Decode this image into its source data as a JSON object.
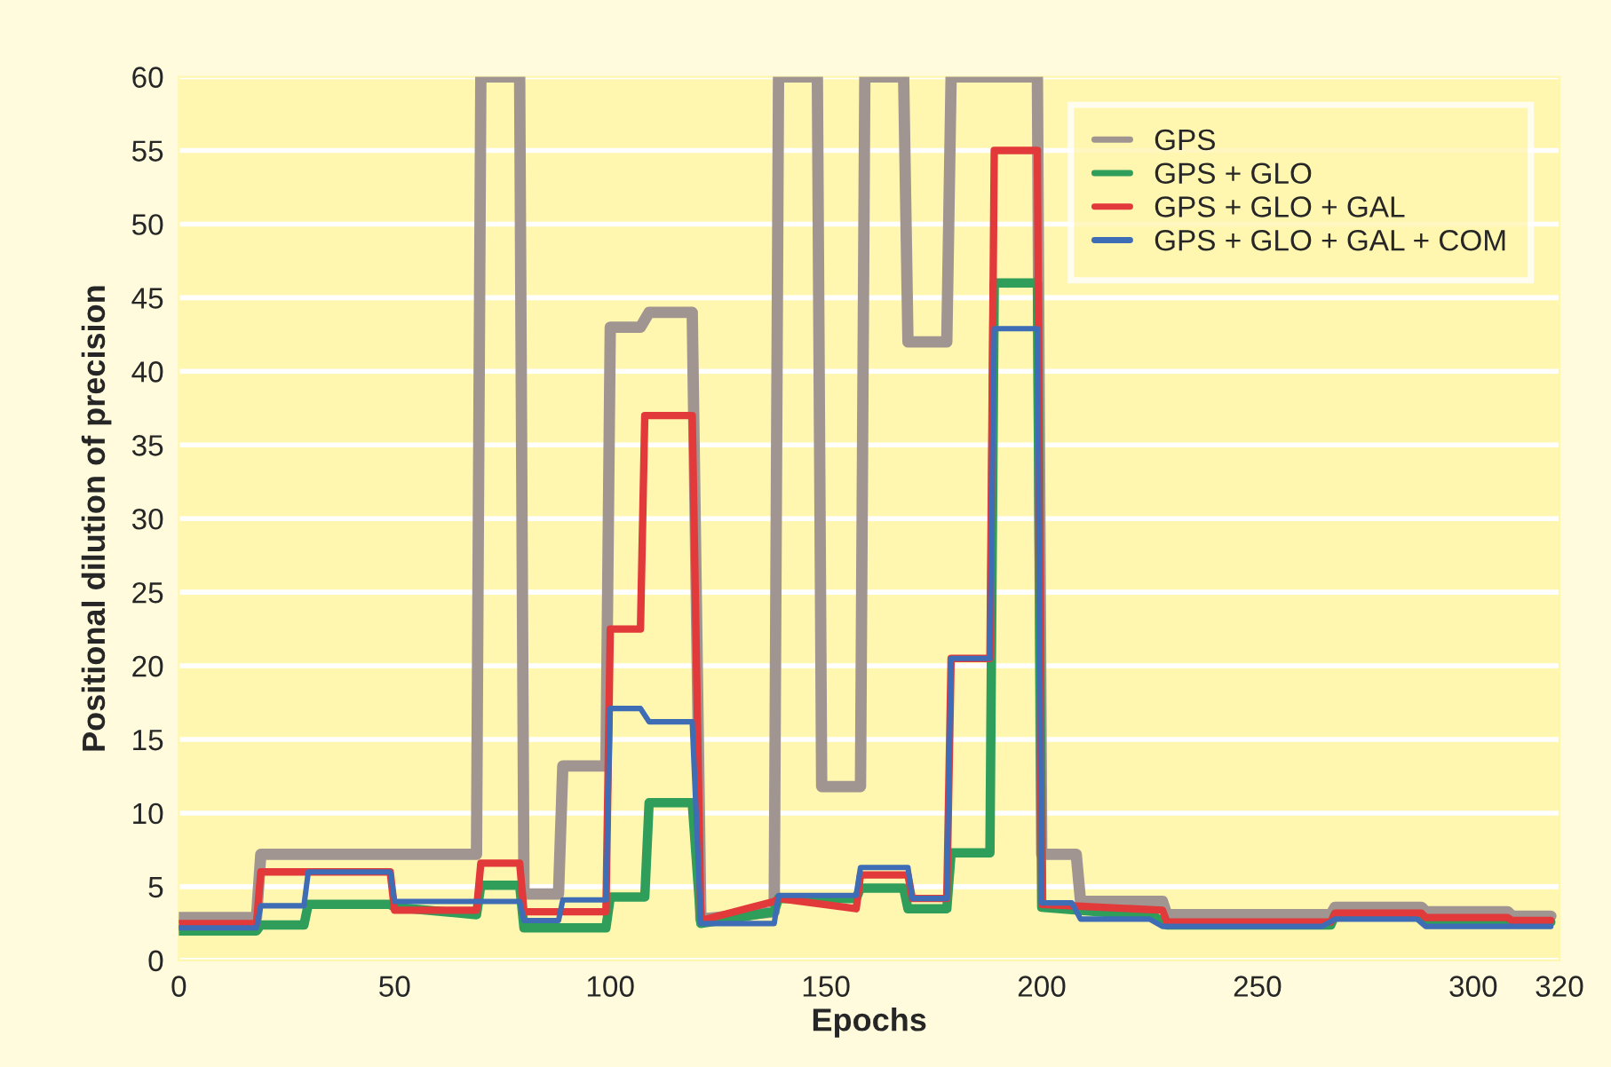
{
  "chart_data": {
    "type": "line",
    "xlabel": "Epochs",
    "ylabel": "Positional dilution of precision",
    "xlim": [
      0,
      320
    ],
    "xticks": [
      0,
      50,
      100,
      150,
      200,
      250,
      300,
      320
    ],
    "ylim": [
      0,
      60
    ],
    "yticks": [
      0,
      5,
      10,
      15,
      20,
      25,
      30,
      35,
      40,
      45,
      50,
      55,
      60
    ],
    "grid": "y",
    "legend": "top right",
    "line_style": "solid",
    "marker": "none",
    "series": [
      {
        "name": "GPS",
        "color": "#a09590",
        "x": [
          0,
          18,
          19,
          69,
          70,
          79,
          80,
          88,
          89,
          99,
          100,
          107,
          109,
          119,
          121,
          138,
          139,
          148,
          149,
          158,
          159,
          168,
          169,
          178,
          179,
          199,
          200,
          208,
          209,
          228,
          229,
          267,
          268,
          288,
          289,
          308,
          309,
          318
        ],
        "values": [
          2.9,
          2.9,
          7.2,
          7.2,
          60,
          60,
          4.5,
          4.5,
          13.2,
          13.2,
          43,
          43,
          44,
          44,
          2.8,
          3.3,
          60,
          60,
          11.8,
          11.8,
          60,
          60,
          42,
          42,
          60,
          60,
          7.2,
          7.2,
          4,
          4,
          3.1,
          3.1,
          3.6,
          3.6,
          3.3,
          3.3,
          3,
          3
        ]
      },
      {
        "name": "GPS + GLO",
        "color": "#2e9e5a",
        "x": [
          0,
          18,
          19,
          29,
          30,
          49,
          50,
          69,
          70,
          79,
          80,
          99,
          100,
          108,
          109,
          119,
          121,
          138,
          139,
          157,
          158,
          168,
          169,
          178,
          179,
          188,
          189,
          199,
          200,
          226,
          229,
          267,
          268,
          288,
          289,
          318
        ],
        "values": [
          2,
          2,
          2.4,
          2.4,
          3.8,
          3.8,
          3.6,
          3.1,
          5.1,
          5.1,
          2.2,
          2.2,
          4.3,
          4.3,
          10.7,
          10.7,
          2.5,
          3.3,
          4.2,
          4.2,
          4.9,
          4.9,
          3.5,
          3.5,
          7.3,
          7.3,
          46,
          46,
          3.6,
          3,
          2.4,
          2.4,
          3.1,
          3.1,
          2.6,
          2.6
        ]
      },
      {
        "name": "GPS + GLO + GAL",
        "color": "#e2393a",
        "x": [
          0,
          18,
          19,
          49,
          50,
          69,
          70,
          79,
          80,
          99,
          100,
          107,
          108,
          119,
          121,
          138,
          139,
          157,
          158,
          169,
          170,
          178,
          179,
          188,
          189,
          199,
          200,
          228,
          229,
          267,
          268,
          288,
          289,
          308,
          309,
          318
        ],
        "values": [
          2.5,
          2.5,
          6,
          6,
          3.4,
          3.4,
          6.6,
          6.6,
          3.3,
          3.3,
          22.5,
          22.5,
          37,
          37,
          2.7,
          4,
          4.2,
          3.5,
          5.8,
          5.8,
          4.2,
          4.2,
          20.5,
          20.5,
          55,
          55,
          3.8,
          3.4,
          2.6,
          2.6,
          3.2,
          3.2,
          2.9,
          2.9,
          2.7,
          2.7
        ]
      },
      {
        "name": "GPS + GLO + GAL + COM",
        "color": "#3e6db5",
        "x": [
          0,
          18,
          19,
          29,
          30,
          49,
          50,
          79,
          80,
          88,
          89,
          99,
          100,
          107,
          109,
          119,
          121,
          138,
          139,
          157,
          158,
          169,
          170,
          178,
          179,
          188,
          189,
          199,
          200,
          207,
          209,
          225,
          228,
          265,
          268,
          287,
          289,
          318
        ],
        "values": [
          2.2,
          2.2,
          3.7,
          3.7,
          6,
          6,
          4,
          4,
          2.7,
          2.7,
          4.1,
          4.1,
          17.1,
          17.1,
          16.2,
          16.2,
          2.5,
          2.5,
          4.4,
          4.4,
          6.3,
          6.3,
          4.2,
          4.2,
          20.5,
          20.5,
          42.9,
          42.9,
          3.9,
          3.9,
          2.8,
          2.8,
          2.3,
          2.3,
          2.8,
          2.8,
          2.3,
          2.3
        ]
      }
    ]
  }
}
